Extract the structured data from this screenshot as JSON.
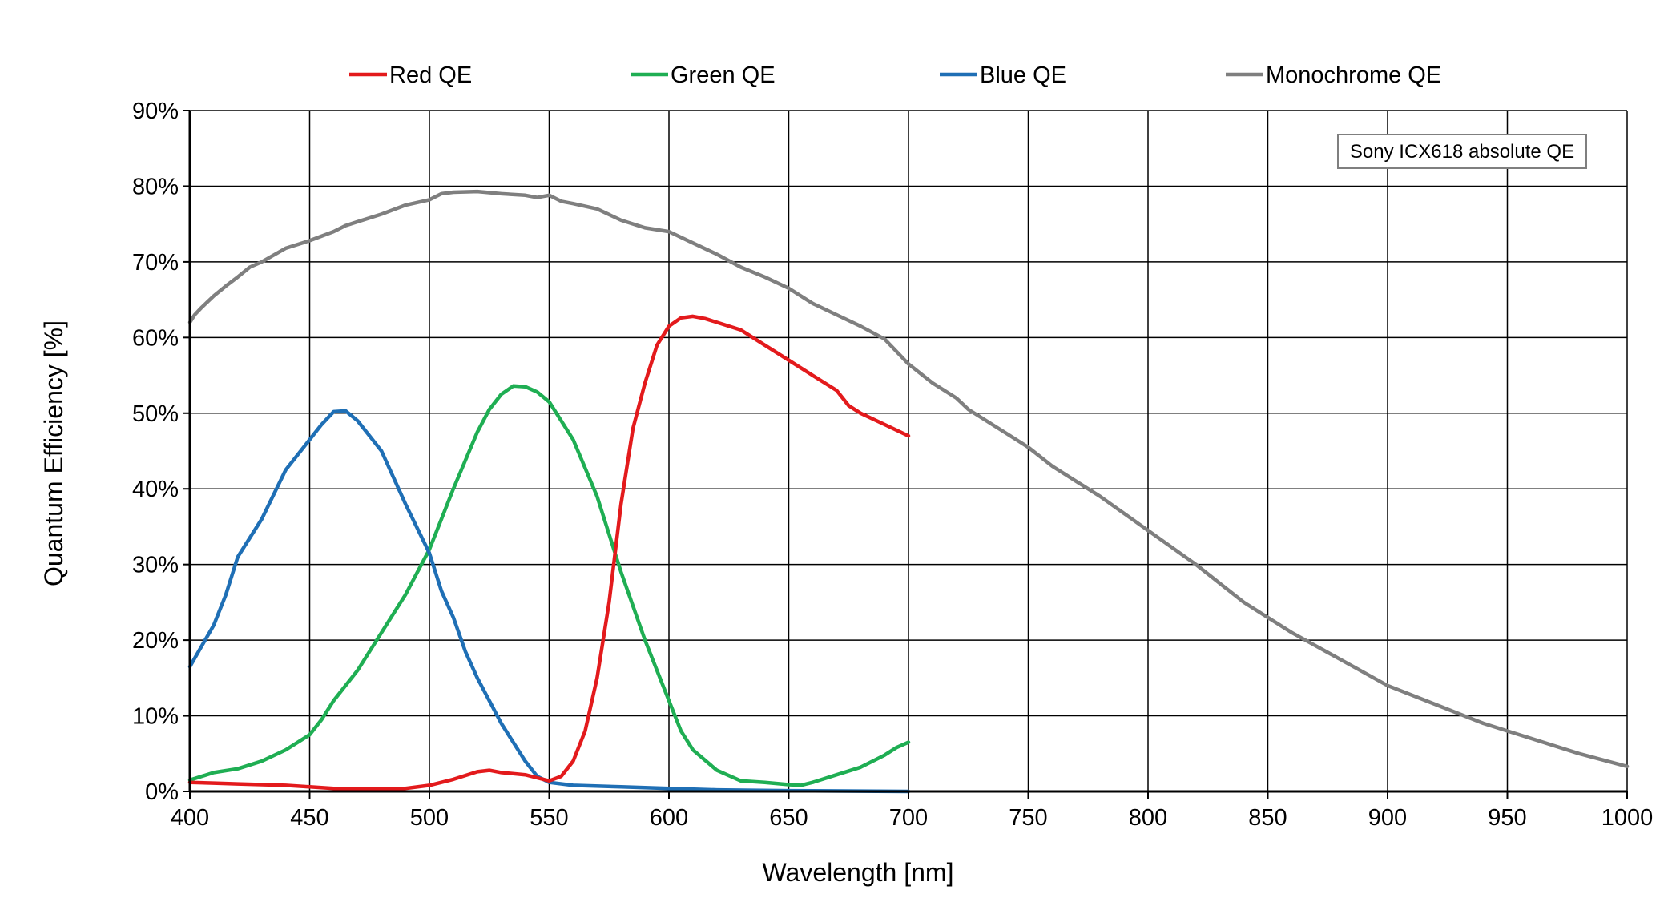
{
  "chart_data": {
    "type": "line",
    "title": "",
    "xlabel": "Wavelength [nm]",
    "ylabel": "Quantum Efficiency [%]",
    "xlim": [
      400,
      1000
    ],
    "ylim": [
      0,
      90
    ],
    "xticks": [
      400,
      450,
      500,
      550,
      600,
      650,
      700,
      750,
      800,
      850,
      900,
      950,
      1000
    ],
    "yticks": [
      0,
      10,
      20,
      30,
      40,
      50,
      60,
      70,
      80,
      90
    ],
    "ytick_suffix": "%",
    "grid": true,
    "legend_position": "top",
    "annotation": "Sony ICX618 absolute QE",
    "series": [
      {
        "name": "Red QE",
        "color": "#e31a1c",
        "x": [
          400,
          410,
          420,
          430,
          440,
          450,
          460,
          470,
          480,
          490,
          500,
          510,
          520,
          525,
          530,
          540,
          545,
          550,
          555,
          560,
          565,
          570,
          575,
          580,
          585,
          590,
          595,
          600,
          605,
          610,
          615,
          620,
          630,
          640,
          650,
          660,
          670,
          675,
          680,
          690,
          700
        ],
        "values": [
          1.2,
          1.1,
          1.0,
          0.9,
          0.8,
          0.6,
          0.4,
          0.3,
          0.3,
          0.4,
          0.8,
          1.6,
          2.6,
          2.8,
          2.5,
          2.2,
          1.8,
          1.4,
          2.0,
          4.0,
          8.0,
          15.0,
          25.0,
          38.0,
          48.0,
          54.0,
          59.0,
          61.5,
          62.6,
          62.8,
          62.5,
          62.0,
          61.0,
          59.0,
          57.0,
          55.0,
          53.0,
          51.0,
          50.0,
          48.5,
          47.0
        ]
      },
      {
        "name": "Green QE",
        "color": "#1fae53",
        "x": [
          400,
          410,
          420,
          430,
          440,
          450,
          455,
          460,
          470,
          480,
          490,
          500,
          505,
          510,
          520,
          525,
          530,
          535,
          540,
          545,
          550,
          555,
          560,
          570,
          580,
          590,
          600,
          605,
          610,
          620,
          630,
          640,
          650,
          655,
          660,
          670,
          680,
          690,
          695,
          700
        ],
        "values": [
          1.5,
          2.5,
          3.0,
          4.0,
          5.5,
          7.5,
          9.5,
          12.0,
          16.0,
          21.0,
          26.0,
          32.0,
          36.0,
          40.0,
          47.5,
          50.5,
          52.5,
          53.6,
          53.5,
          52.8,
          51.5,
          49.0,
          46.5,
          39.0,
          29.0,
          20.0,
          12.0,
          8.0,
          5.5,
          2.8,
          1.4,
          1.2,
          0.9,
          0.8,
          1.2,
          2.2,
          3.2,
          4.8,
          5.8,
          6.5
        ]
      },
      {
        "name": "Blue QE",
        "color": "#1f6fb5",
        "x": [
          400,
          410,
          415,
          420,
          430,
          440,
          450,
          455,
          460,
          465,
          470,
          475,
          480,
          490,
          500,
          505,
          510,
          515,
          520,
          530,
          540,
          545,
          550,
          560,
          580,
          600,
          620,
          650,
          700
        ],
        "values": [
          16.5,
          22.0,
          26.0,
          31.0,
          36.0,
          42.5,
          46.5,
          48.5,
          50.2,
          50.3,
          49.0,
          47.0,
          45.0,
          38.0,
          31.5,
          26.5,
          23.0,
          18.5,
          15.0,
          9.0,
          4.0,
          2.0,
          1.2,
          0.8,
          0.6,
          0.4,
          0.2,
          0.1,
          0.0
        ]
      },
      {
        "name": "Monochrome QE",
        "color": "#7f7f7f",
        "x": [
          400,
          402,
          405,
          410,
          415,
          420,
          425,
          430,
          440,
          450,
          460,
          465,
          470,
          480,
          490,
          500,
          505,
          510,
          520,
          530,
          540,
          545,
          550,
          555,
          560,
          570,
          580,
          590,
          600,
          610,
          620,
          630,
          640,
          650,
          660,
          670,
          680,
          690,
          700,
          710,
          720,
          725,
          730,
          740,
          750,
          760,
          770,
          780,
          800,
          820,
          840,
          860,
          880,
          900,
          920,
          940,
          960,
          980,
          1000
        ],
        "values": [
          62.0,
          63.0,
          64.0,
          65.5,
          66.8,
          68.0,
          69.3,
          70.0,
          71.8,
          72.8,
          74.0,
          74.8,
          75.3,
          76.3,
          77.5,
          78.2,
          79.0,
          79.2,
          79.3,
          79.0,
          78.8,
          78.5,
          78.8,
          78.0,
          77.7,
          77.0,
          75.5,
          74.5,
          74.0,
          72.5,
          71.0,
          69.3,
          68.0,
          66.5,
          64.5,
          63.0,
          61.5,
          59.8,
          56.5,
          54.0,
          52.0,
          50.5,
          49.5,
          47.5,
          45.5,
          43.0,
          41.0,
          39.0,
          34.5,
          30.0,
          25.0,
          21.0,
          17.5,
          14.0,
          11.5,
          9.0,
          7.0,
          5.0,
          3.3
        ]
      }
    ]
  }
}
